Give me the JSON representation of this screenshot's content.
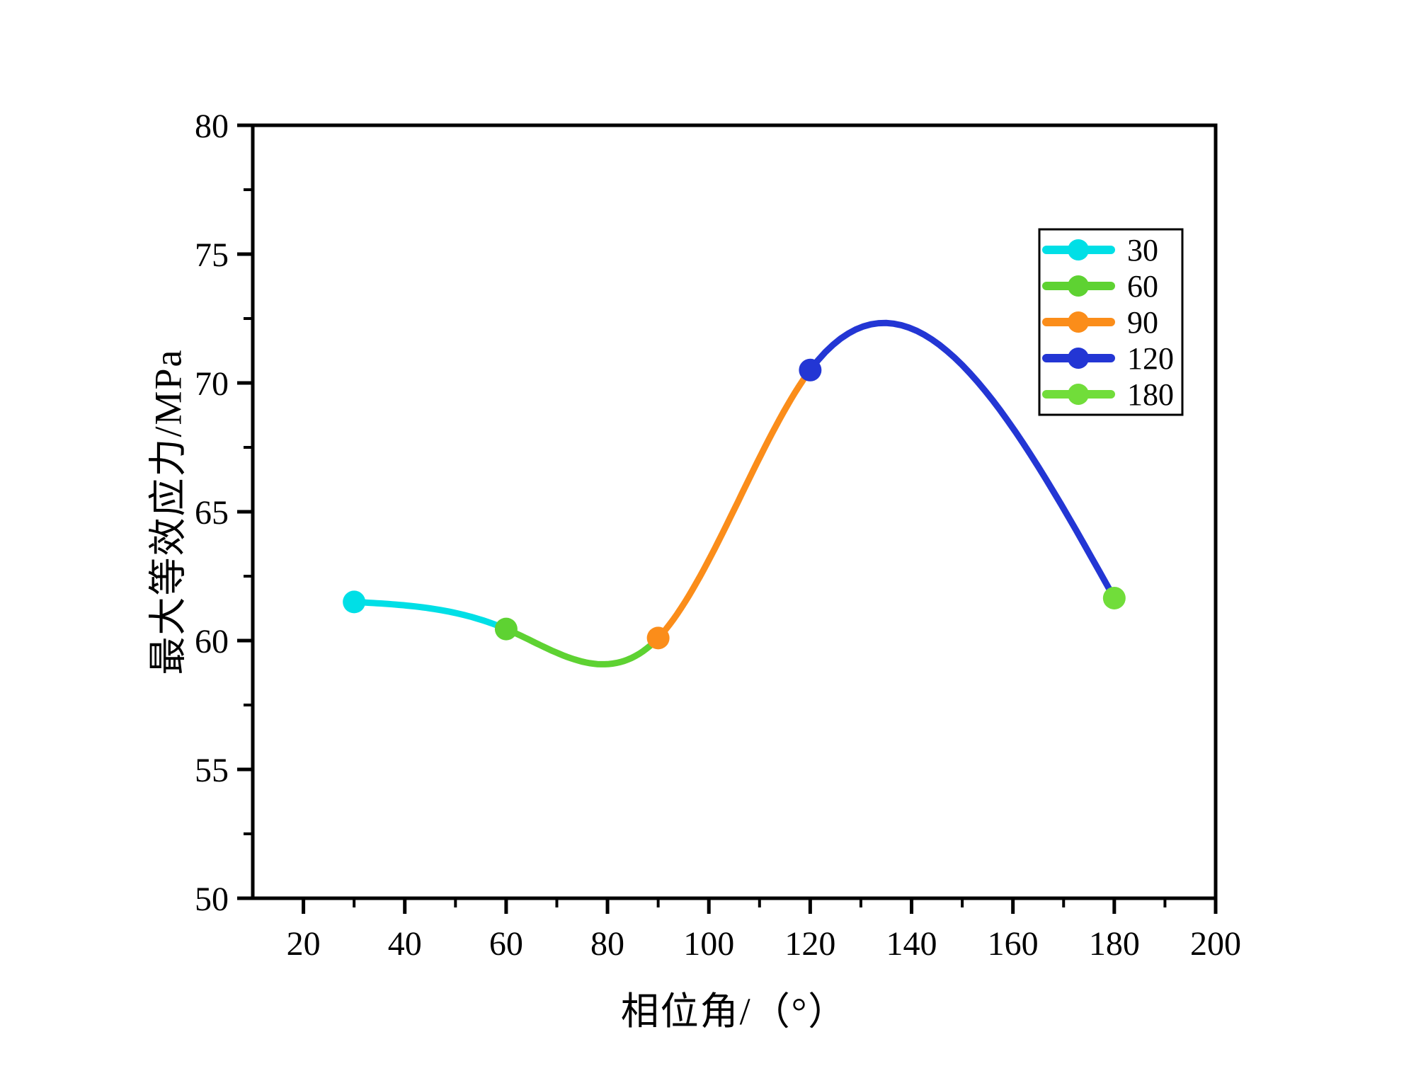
{
  "figure": {
    "background": "#ffffff",
    "axis_color": "#000000",
    "text_color": "#000000"
  },
  "chart_data": {
    "type": "line",
    "title": "",
    "xlabel": "相位角/（°）",
    "ylabel": "最大等效应力/MPa",
    "xlim": [
      10,
      200
    ],
    "ylim": [
      50,
      80
    ],
    "x_major_ticks": [
      20,
      40,
      60,
      80,
      100,
      120,
      140,
      160,
      180,
      200
    ],
    "x_minor_ticks": [
      30,
      50,
      70,
      90,
      110,
      130,
      150,
      170,
      190
    ],
    "y_major_ticks": [
      50,
      55,
      60,
      65,
      70,
      75,
      80
    ],
    "y_minor_ticks": [
      52.5,
      57.5,
      62.5,
      67.5,
      72.5,
      77.5
    ],
    "grid": false,
    "curve_style": "smooth natural cubic spline through all points; each inter-point segment drawn in the color of its left endpoint series",
    "series": [
      {
        "name": "30",
        "color": "#00dfe6",
        "point": {
          "x": 30,
          "y": 61.5
        }
      },
      {
        "name": "60",
        "color": "#5ed232",
        "point": {
          "x": 60,
          "y": 60.45
        }
      },
      {
        "name": "90",
        "color": "#fb8d1a",
        "point": {
          "x": 90,
          "y": 60.1
        }
      },
      {
        "name": "120",
        "color": "#2336d4",
        "point": {
          "x": 120,
          "y": 70.5
        }
      },
      {
        "name": "180",
        "color": "#71dd3a",
        "point": {
          "x": 180,
          "y": 61.65
        }
      }
    ],
    "curve_features": {
      "local_min": {
        "x": 80,
        "y": 59.1
      },
      "local_max": {
        "x": 135,
        "y": 72.3
      }
    },
    "legend": {
      "position": "upper-right",
      "border_color": "#000000",
      "background": "#ffffff",
      "entries": [
        "30",
        "60",
        "90",
        "120",
        "180"
      ]
    }
  }
}
